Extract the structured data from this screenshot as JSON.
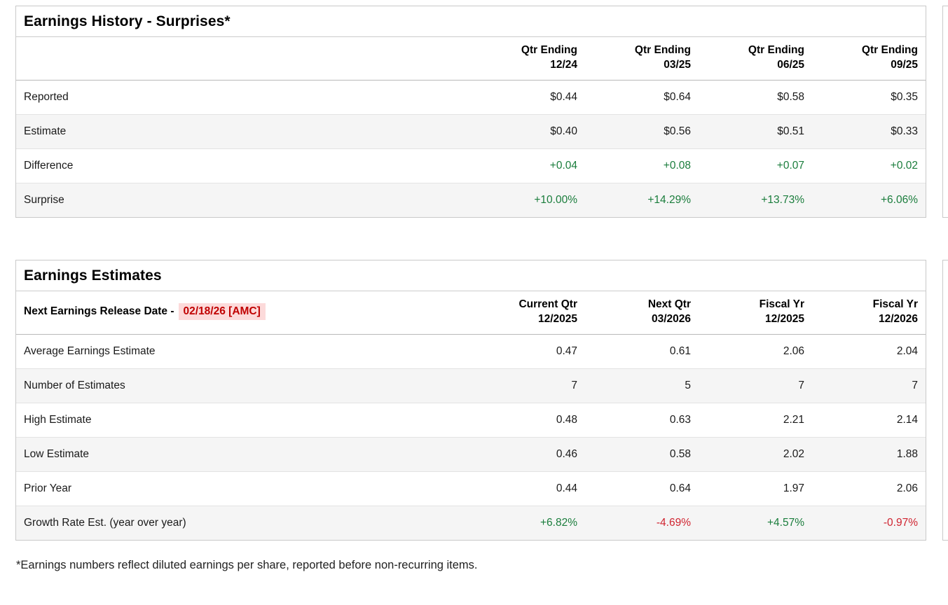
{
  "colors": {
    "positive_green": "#1a7d3c",
    "negative_red": "#d02430",
    "highlight_text_red": "#c00000",
    "highlight_bg_pink": "#fcdada",
    "stripe_gray": "#f5f5f5",
    "panel_border": "#c9c9c9"
  },
  "earnings_history": {
    "title": "Earnings History - Surprises*",
    "columns": [
      {
        "label": "Qtr Ending",
        "sub": "12/24"
      },
      {
        "label": "Qtr Ending",
        "sub": "03/25"
      },
      {
        "label": "Qtr Ending",
        "sub": "06/25"
      },
      {
        "label": "Qtr Ending",
        "sub": "09/25"
      }
    ],
    "rows": [
      {
        "label": "Reported",
        "signed": false,
        "values": [
          "$0.44",
          "$0.64",
          "$0.58",
          "$0.35"
        ]
      },
      {
        "label": "Estimate",
        "signed": false,
        "values": [
          "$0.40",
          "$0.56",
          "$0.51",
          "$0.33"
        ]
      },
      {
        "label": "Difference",
        "signed": true,
        "values": [
          "+0.04",
          "+0.08",
          "+0.07",
          "+0.02"
        ]
      },
      {
        "label": "Surprise",
        "signed": true,
        "values": [
          "+10.00%",
          "+14.29%",
          "+13.73%",
          "+6.06%"
        ]
      }
    ]
  },
  "earnings_estimates": {
    "title": "Earnings Estimates",
    "release_date_label": "Next Earnings Release Date -",
    "release_date_value": "02/18/26 [AMC]",
    "columns": [
      {
        "label": "Current Qtr",
        "sub": "12/2025"
      },
      {
        "label": "Next Qtr",
        "sub": "03/2026"
      },
      {
        "label": "Fiscal Yr",
        "sub": "12/2025"
      },
      {
        "label": "Fiscal Yr",
        "sub": "12/2026"
      }
    ],
    "rows": [
      {
        "label": "Average Earnings Estimate",
        "signed": false,
        "values": [
          "0.47",
          "0.61",
          "2.06",
          "2.04"
        ]
      },
      {
        "label": "Number of Estimates",
        "signed": false,
        "values": [
          "7",
          "5",
          "7",
          "7"
        ]
      },
      {
        "label": "High Estimate",
        "signed": false,
        "values": [
          "0.48",
          "0.63",
          "2.21",
          "2.14"
        ]
      },
      {
        "label": "Low Estimate",
        "signed": false,
        "values": [
          "0.46",
          "0.58",
          "2.02",
          "1.88"
        ]
      },
      {
        "label": "Prior Year",
        "signed": false,
        "values": [
          "0.44",
          "0.64",
          "1.97",
          "2.06"
        ]
      },
      {
        "label": "Growth Rate Est. (year over year)",
        "signed": true,
        "values": [
          "+6.82%",
          "-4.69%",
          "+4.57%",
          "-0.97%"
        ]
      }
    ]
  },
  "footnote": "*Earnings numbers reflect diluted earnings per share, reported before non-recurring items."
}
